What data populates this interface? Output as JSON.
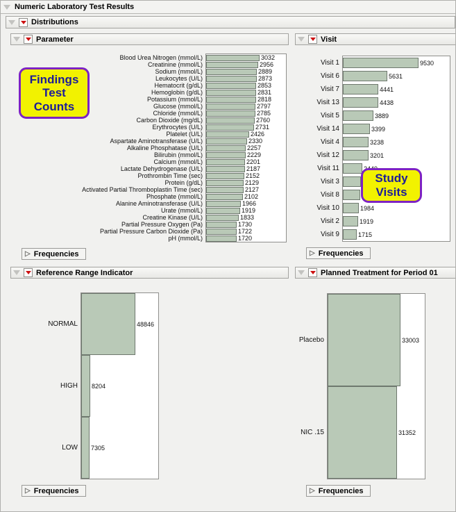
{
  "window": {
    "title": "Numeric Laboratory Test Results"
  },
  "distributions": {
    "label": "Distributions"
  },
  "panels": {
    "parameter": {
      "title": "Parameter",
      "frequencies_label": "Frequencies"
    },
    "visit": {
      "title": "Visit",
      "frequencies_label": "Frequencies"
    },
    "reference_range": {
      "title": "Reference Range Indicator",
      "frequencies_label": "Frequencies"
    },
    "treatment": {
      "title": "Planned Treatment for Period 01",
      "frequencies_label": "Frequencies"
    }
  },
  "annotations": {
    "findings": "Findings Test Counts",
    "study_visits": "Study Visits"
  },
  "colors": {
    "page_bg": "#f1f1ef",
    "bar_fill": "#b9c9b7",
    "bar_border": "#6e786e",
    "plot_border": "#8f8f8c",
    "header_border": "#a3a3a0",
    "red_triangle": "#cc1111",
    "annotation_bg": "#f2f200",
    "annotation_border": "#7d22c3",
    "annotation_text": "#1c1c99"
  },
  "chart_data": [
    {
      "type": "bar",
      "orientation": "horizontal",
      "title": "Parameter",
      "categories": [
        "Blood Urea Nitrogen (mmol/L)",
        "Creatinine (mmol/L)",
        "Sodium (mmol/L)",
        "Leukocytes (U/L)",
        "Hematocrit (g/dL)",
        "Hemoglobin (g/dL)",
        "Potassium (mmol/L)",
        "Glucose (mmol/L)",
        "Chloride (mmol/L)",
        "Carbon Dioxide (mg/dL)",
        "Erythrocytes (U/L)",
        "Platelet (U/L)",
        "Aspartate Aminotransferase (U/L)",
        "Alkaline Phosphatase (U/L)",
        "Bilirubin (mmol/L)",
        "Calcium (mmol/L)",
        "Lactate Dehydrogenase (U/L)",
        "Prothrombin Time (sec)",
        "Protein (g/dL)",
        "Activated Partial Thromboplastin Time (sec)",
        "Phosphate (mmol/L)",
        "Alanine Aminotransferase (U/L)",
        "Urate (mmol/L)",
        "Creatine Kinase (U/L)",
        "Partial Pressure Oxygen (Pa)",
        "Partial Pressure Carbon Dioxide (Pa)",
        "pH (mmol/L)"
      ],
      "values": [
        3032,
        2956,
        2889,
        2873,
        2853,
        2831,
        2818,
        2797,
        2785,
        2760,
        2731,
        2426,
        2330,
        2257,
        2229,
        2201,
        2187,
        2152,
        2129,
        2127,
        2102,
        1966,
        1919,
        1833,
        1730,
        1722,
        1720
      ]
    },
    {
      "type": "bar",
      "orientation": "horizontal",
      "title": "Visit",
      "categories": [
        "Visit 1",
        "Visit 6",
        "Visit 7",
        "Visit 13",
        "Visit 5",
        "Visit 14",
        "Visit 4",
        "Visit 12",
        "Visit 11",
        "Visit 3",
        "Visit 8",
        "Visit 10",
        "Visit 2",
        "Visit 9"
      ],
      "values": [
        9530,
        5631,
        4441,
        4438,
        3889,
        3399,
        3238,
        3201,
        2449,
        2270,
        2164,
        1984,
        1919,
        1715
      ]
    },
    {
      "type": "bar",
      "orientation": "horizontal",
      "title": "Reference Range Indicator",
      "categories": [
        "NORMAL",
        "HIGH",
        "LOW"
      ],
      "values": [
        48846,
        8204,
        7305
      ]
    },
    {
      "type": "bar",
      "orientation": "horizontal",
      "title": "Planned Treatment for Period 01",
      "categories": [
        "Placebo",
        "NIC .15"
      ],
      "values": [
        33003,
        31352
      ]
    }
  ]
}
